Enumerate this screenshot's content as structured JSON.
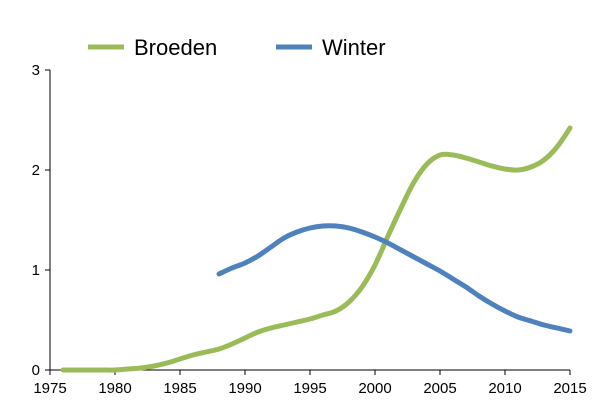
{
  "chart_data": {
    "type": "line",
    "title": "",
    "xlabel": "",
    "ylabel": "",
    "xlim": [
      1975,
      2015
    ],
    "ylim": [
      0,
      3
    ],
    "x_ticks": [
      1975,
      1980,
      1985,
      1990,
      1995,
      2000,
      2005,
      2010,
      2015
    ],
    "y_ticks": [
      0,
      1,
      2,
      3
    ],
    "grid": false,
    "legend_position": "top",
    "series": [
      {
        "name": "Broeden",
        "color": "#9BBB59",
        "x": [
          1976,
          1977,
          1978,
          1979,
          1980,
          1981,
          1982,
          1983,
          1984,
          1985,
          1986,
          1987,
          1988,
          1989,
          1990,
          1991,
          1992,
          1993,
          1994,
          1995,
          1996,
          1997,
          1998,
          1999,
          2000,
          2001,
          2002,
          2003,
          2004,
          2005,
          2006,
          2007,
          2008,
          2009,
          2010,
          2011,
          2012,
          2013,
          2014,
          2015
        ],
        "values": [
          0.0,
          0.0,
          0.0,
          0.0,
          0.0,
          0.01,
          0.02,
          0.04,
          0.07,
          0.11,
          0.15,
          0.18,
          0.21,
          0.26,
          0.32,
          0.38,
          0.42,
          0.45,
          0.48,
          0.51,
          0.55,
          0.59,
          0.68,
          0.83,
          1.05,
          1.34,
          1.62,
          1.88,
          2.06,
          2.15,
          2.15,
          2.12,
          2.08,
          2.04,
          2.01,
          2.0,
          2.03,
          2.1,
          2.23,
          2.42
        ]
      },
      {
        "name": "Winter",
        "color": "#4F81BD",
        "x": [
          1988,
          1989,
          1990,
          1991,
          1992,
          1993,
          1994,
          1995,
          1996,
          1997,
          1998,
          1999,
          2000,
          2001,
          2002,
          2003,
          2004,
          2005,
          2006,
          2007,
          2008,
          2009,
          2010,
          2011,
          2012,
          2013,
          2014,
          2015
        ],
        "values": [
          0.96,
          1.02,
          1.07,
          1.14,
          1.23,
          1.32,
          1.38,
          1.42,
          1.44,
          1.44,
          1.42,
          1.38,
          1.33,
          1.27,
          1.2,
          1.13,
          1.06,
          0.99,
          0.91,
          0.83,
          0.74,
          0.66,
          0.59,
          0.53,
          0.49,
          0.45,
          0.42,
          0.39
        ]
      }
    ]
  }
}
